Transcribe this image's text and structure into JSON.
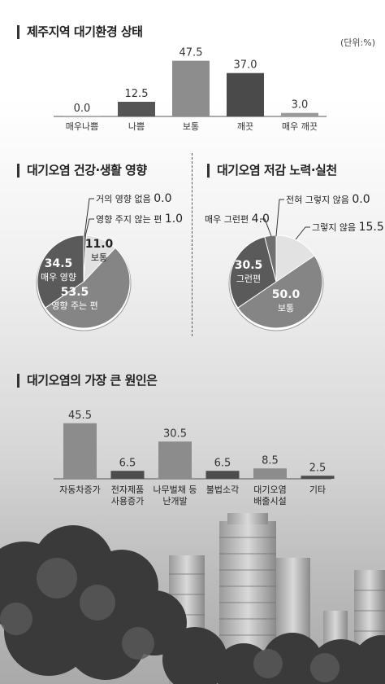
{
  "sections": {
    "top": {
      "title": "제주지역 대기환경 상태",
      "unit": "(단위:%)"
    },
    "health": {
      "title": "대기오염 건강·생활 영향"
    },
    "effort": {
      "title": "대기오염 저감 노력·실천"
    },
    "cause": {
      "title": "대기오염의 가장 큰 원인은"
    }
  },
  "chart_data": [
    {
      "type": "bar",
      "title": "제주지역 대기환경 상태",
      "categories": [
        "매우나쁨",
        "나쁨",
        "보통",
        "깨끗",
        "매우 깨끗"
      ],
      "values": [
        0.0,
        12.5,
        47.5,
        37.0,
        3.0
      ],
      "value_labels": [
        "0.0",
        "12.5",
        "47.5",
        "37.0",
        "3.0"
      ],
      "colors": [
        "#707070",
        "#555555",
        "#8d8d8d",
        "#4a4a4a",
        "#9a9a9a"
      ],
      "unit": "(단위:%)",
      "ylim": [
        0,
        50
      ]
    },
    {
      "type": "pie",
      "title": "대기오염 건강·생활 영향",
      "slices": [
        {
          "label": "거의 영향 없음",
          "value": 0.0,
          "value_label": "0.0",
          "color": "#cccccc"
        },
        {
          "label": "영향 주지 않는 편",
          "value": 1.0,
          "value_label": "1.0",
          "color": "#6e6e6e"
        },
        {
          "label": "보통",
          "value": 11.0,
          "value_label": "11.0",
          "color": "#e2e2e2"
        },
        {
          "label": "영향 주는 편",
          "value": 53.5,
          "value_label": "53.5",
          "color": "#858585"
        },
        {
          "label": "매우 영향",
          "value": 34.5,
          "value_label": "34.5",
          "color": "#5a5a5a"
        }
      ]
    },
    {
      "type": "pie",
      "title": "대기오염 저감 노력·실천",
      "slices": [
        {
          "label": "전혀 그렇지 않음",
          "value": 0.0,
          "value_label": "0.0",
          "color": "#cccccc"
        },
        {
          "label": "그렇지 않음",
          "value": 15.5,
          "value_label": "15.5",
          "color": "#e2e2e2"
        },
        {
          "label": "보통",
          "value": 50.0,
          "value_label": "50.0",
          "color": "#858585"
        },
        {
          "label": "그런편",
          "value": 30.5,
          "value_label": "30.5",
          "color": "#5a5a5a"
        },
        {
          "label": "매우 그런편",
          "value": 4.0,
          "value_label": "4.0",
          "color": "#707070"
        }
      ]
    },
    {
      "type": "bar",
      "title": "대기오염의 가장 큰 원인은",
      "categories": [
        [
          "자동차증가"
        ],
        [
          "전자제품",
          "사용증가"
        ],
        [
          "나무벌채 등",
          "난개발"
        ],
        [
          "불법소각"
        ],
        [
          "대기오염",
          "배출시설"
        ],
        [
          "기타"
        ]
      ],
      "values": [
        45.5,
        6.5,
        30.5,
        6.5,
        8.5,
        2.5
      ],
      "value_labels": [
        "45.5",
        "6.5",
        "30.5",
        "6.5",
        "8.5",
        "2.5"
      ],
      "colors": [
        "#8c8c8c",
        "#4c4c4c",
        "#8c8c8c",
        "#4c4c4c",
        "#8c8c8c",
        "#4c4c4c"
      ],
      "ylim": [
        0,
        50
      ]
    }
  ]
}
